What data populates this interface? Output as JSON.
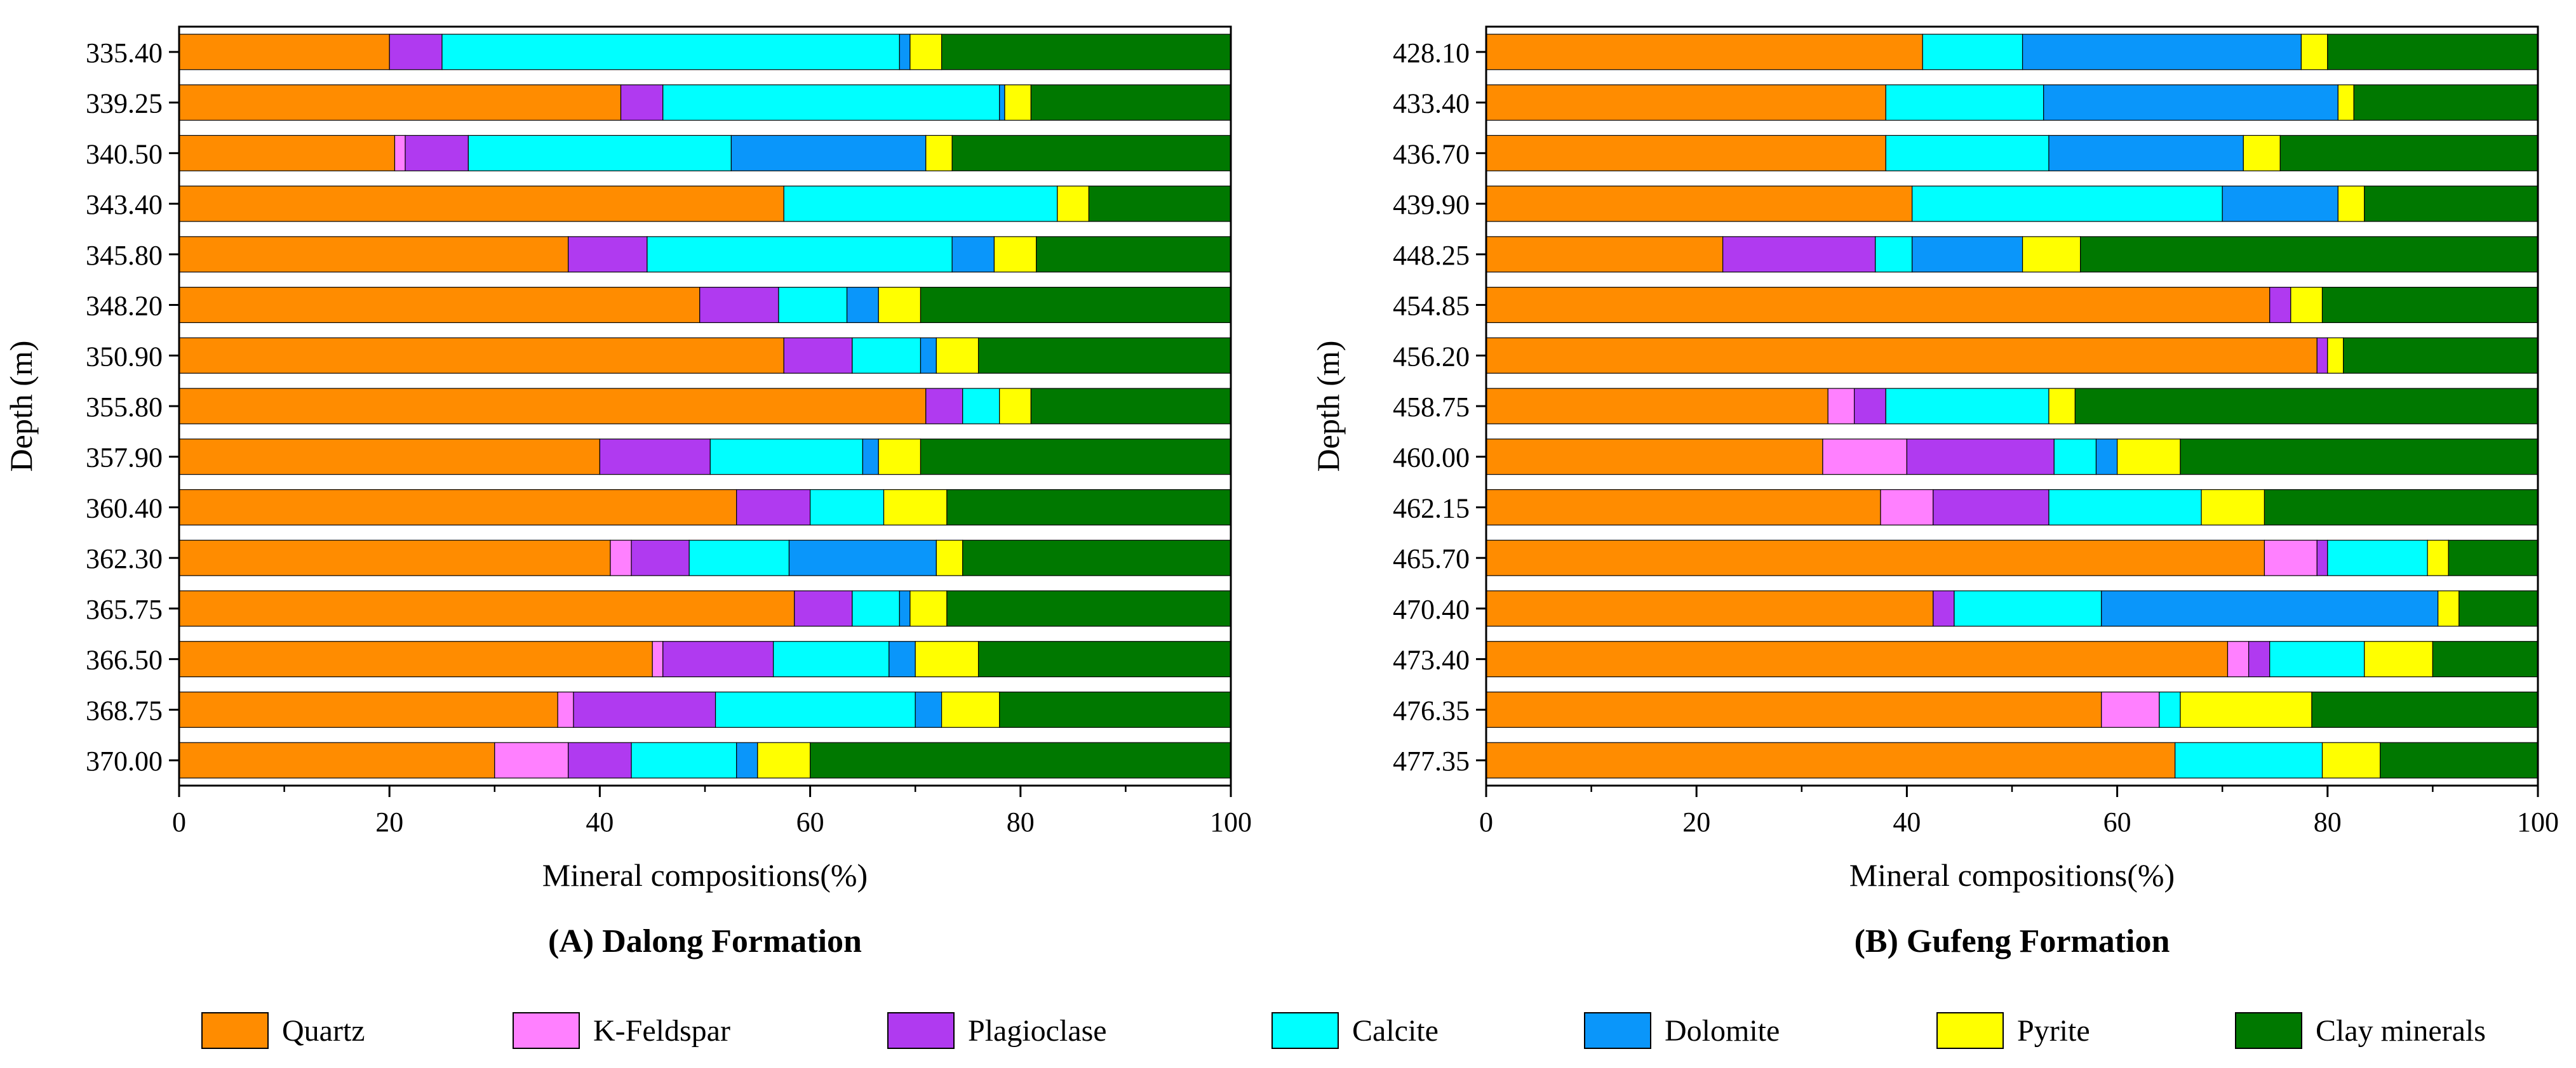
{
  "figure": {
    "legend": {
      "items": [
        {
          "label": "Quartz",
          "color": "#FF8C00"
        },
        {
          "label": "K-Feldspar",
          "color": "#FF80FF"
        },
        {
          "label": "Plagioclase",
          "color": "#B03AF0"
        },
        {
          "label": "Calcite",
          "color": "#00FFFF"
        },
        {
          "label": "Dolomite",
          "color": "#0A96FA"
        },
        {
          "label": "Pyrite",
          "color": "#FFFF00"
        },
        {
          "label": "Clay minerals",
          "color": "#007800"
        }
      ]
    }
  },
  "chart_data": [
    {
      "type": "bar",
      "orientation": "horizontal",
      "stacked": true,
      "title": "(A) Dalong Formation",
      "xlabel": "Mineral compositions(%)",
      "ylabel": "Depth (m)",
      "xlim": [
        0,
        100
      ],
      "xticks": [
        "0",
        "20",
        "40",
        "60",
        "80",
        "100"
      ],
      "grid": false,
      "categories": [
        "335.40",
        "339.25",
        "340.50",
        "343.40",
        "345.80",
        "348.20",
        "350.90",
        "355.80",
        "357.90",
        "360.40",
        "362.30",
        "365.75",
        "366.50",
        "368.75",
        "370.00"
      ],
      "series": [
        {
          "name": "Quartz",
          "color": "#FF8C00",
          "values": [
            20,
            42,
            20.5,
            57.5,
            37,
            49.5,
            57.5,
            71,
            40,
            53,
            41,
            58.5,
            45,
            36,
            30
          ]
        },
        {
          "name": "K-Feldspar",
          "color": "#FF80FF",
          "values": [
            0,
            0,
            1,
            0,
            0,
            0,
            0,
            0,
            0,
            0,
            2,
            0,
            1,
            1.5,
            7
          ]
        },
        {
          "name": "Plagioclase",
          "color": "#B03AF0",
          "values": [
            5,
            4,
            6,
            0,
            7.5,
            7.5,
            6.5,
            3.5,
            10.5,
            7,
            5.5,
            5.5,
            10.5,
            13.5,
            6
          ]
        },
        {
          "name": "Calcite",
          "color": "#00FFFF",
          "values": [
            43.5,
            32,
            25,
            26,
            29,
            6.5,
            6.5,
            3.5,
            14.5,
            7,
            9.5,
            4.5,
            11,
            19,
            10
          ]
        },
        {
          "name": "Dolomite",
          "color": "#0A96FA",
          "values": [
            1,
            0.5,
            18.5,
            0,
            4,
            3,
            1.5,
            0,
            1.5,
            0,
            14,
            1,
            2.5,
            2.5,
            2
          ]
        },
        {
          "name": "Pyrite",
          "color": "#FFFF00",
          "values": [
            3,
            2.5,
            2.5,
            3,
            4,
            4,
            4,
            3,
            4,
            6,
            2.5,
            3.5,
            6,
            5.5,
            5
          ]
        },
        {
          "name": "Clay minerals",
          "color": "#007800",
          "values": [
            27.5,
            19,
            26.5,
            13.5,
            18.5,
            29.5,
            24,
            19,
            29.5,
            27,
            25.5,
            27,
            24,
            22,
            40
          ]
        }
      ]
    },
    {
      "type": "bar",
      "orientation": "horizontal",
      "stacked": true,
      "title": "(B) Gufeng Formation",
      "xlabel": "Mineral compositions(%)",
      "ylabel": "Depth (m)",
      "xlim": [
        0,
        100
      ],
      "xticks": [
        "0",
        "20",
        "40",
        "60",
        "80",
        "100"
      ],
      "grid": false,
      "categories": [
        "428.10",
        "433.40",
        "436.70",
        "439.90",
        "448.25",
        "454.85",
        "456.20",
        "458.75",
        "460.00",
        "462.15",
        "465.70",
        "470.40",
        "473.40",
        "476.35",
        "477.35"
      ],
      "series": [
        {
          "name": "Quartz",
          "color": "#FF8C00",
          "values": [
            41.5,
            38,
            38,
            40.5,
            22.5,
            74.5,
            79,
            32.5,
            32,
            37.5,
            74,
            42.5,
            70.5,
            58.5,
            65.5
          ]
        },
        {
          "name": "K-Feldspar",
          "color": "#FF80FF",
          "values": [
            0,
            0,
            0,
            0,
            0,
            0,
            0,
            2.5,
            8,
            5,
            5,
            0,
            2,
            5.5,
            0
          ]
        },
        {
          "name": "Plagioclase",
          "color": "#B03AF0",
          "values": [
            0,
            0,
            0,
            0,
            14.5,
            2,
            1,
            3,
            14,
            11,
            1,
            2,
            2,
            0,
            0
          ]
        },
        {
          "name": "Calcite",
          "color": "#00FFFF",
          "values": [
            9.5,
            15,
            15.5,
            29.5,
            3.5,
            0,
            0,
            15.5,
            4,
            14.5,
            9.5,
            14,
            9,
            2,
            14
          ]
        },
        {
          "name": "Dolomite",
          "color": "#0A96FA",
          "values": [
            26.5,
            28,
            18.5,
            11,
            10.5,
            0,
            0,
            0,
            2,
            0,
            0,
            32,
            0,
            0,
            0
          ]
        },
        {
          "name": "Pyrite",
          "color": "#FFFF00",
          "values": [
            2.5,
            1.5,
            3.5,
            2.5,
            5.5,
            3,
            1.5,
            2.5,
            6,
            6,
            2,
            2,
            6.5,
            12.5,
            5.5
          ]
        },
        {
          "name": "Clay minerals",
          "color": "#007800",
          "values": [
            20,
            17.5,
            24.5,
            16.5,
            43.5,
            20.5,
            18.5,
            44,
            34,
            26,
            8.5,
            7.5,
            10,
            21.5,
            15
          ]
        }
      ]
    }
  ]
}
